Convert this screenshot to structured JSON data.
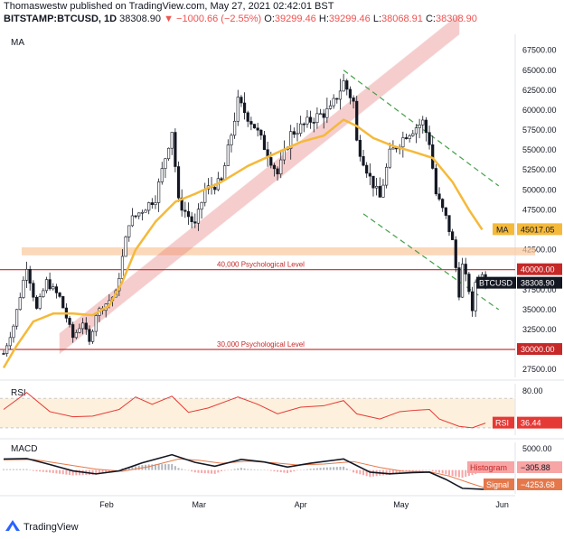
{
  "header": {
    "line1": "Thomaswestw published on TradingView.com, May 27, 2021 02:42:01 BST",
    "symbol": "BITSTAMP:BTCUSD, 1D",
    "last": "38308.90",
    "change": "▼ −1000.66 (−2.55%)",
    "o_label": "O:",
    "o": "39299.46",
    "h_label": "H:",
    "h": "39299.46",
    "l_label": "L:",
    "l": "38068.91",
    "c_label": "C:",
    "c": "38308.90"
  },
  "footer": {
    "brand": "TradingView"
  },
  "colors": {
    "up": "#ffffff",
    "down": "#131722",
    "ma": "#f5b93a",
    "support": "#c62828",
    "channel": "#e57373",
    "band": "#f9c89b",
    "trend": "#43a047",
    "rsi": "#e53935",
    "macd": "#131722",
    "signal": "#e5784b",
    "hist_pos": "#b2b5be",
    "hist_neg": "#f7a5a5"
  },
  "chart_data": [
    {
      "type": "candlestick",
      "title": "MA",
      "ylim": [
        26500,
        69500
      ],
      "yticks": [
        "67500.00",
        "65000.00",
        "62500.00",
        "60000.00",
        "57500.00",
        "55000.00",
        "52500.00",
        "50000.00",
        "47500.00",
        "45000.00",
        "42500.00",
        "40000.00",
        "37500.00",
        "35000.00",
        "32500.00",
        "30000.00",
        "27500.00"
      ],
      "xlabels": [
        {
          "label": "Feb",
          "date": "2021-02-01"
        },
        {
          "label": "Mar",
          "date": "2021-03-01"
        },
        {
          "label": "Apr",
          "date": "2021-04-01"
        },
        {
          "label": "May",
          "date": "2021-05-01"
        },
        {
          "label": "Jun",
          "date": "2021-06-01"
        }
      ],
      "anchors": [
        {
          "date": "2021-01-01",
          "price": 29500
        },
        {
          "date": "2021-01-04",
          "price": 33000
        },
        {
          "date": "2021-01-08",
          "price": 40500
        },
        {
          "date": "2021-01-11",
          "price": 35000
        },
        {
          "date": "2021-01-14",
          "price": 38500
        },
        {
          "date": "2021-01-18",
          "price": 36500
        },
        {
          "date": "2021-01-22",
          "price": 31500
        },
        {
          "date": "2021-01-25",
          "price": 33500
        },
        {
          "date": "2021-01-27",
          "price": 30800
        },
        {
          "date": "2021-01-29",
          "price": 34500
        },
        {
          "date": "2021-02-04",
          "price": 37000
        },
        {
          "date": "2021-02-08",
          "price": 46000
        },
        {
          "date": "2021-02-12",
          "price": 47500
        },
        {
          "date": "2021-02-16",
          "price": 49000
        },
        {
          "date": "2021-02-21",
          "price": 57500
        },
        {
          "date": "2021-02-23",
          "price": 48500
        },
        {
          "date": "2021-02-28",
          "price": 45500
        },
        {
          "date": "2021-03-03",
          "price": 50000
        },
        {
          "date": "2021-03-08",
          "price": 51000
        },
        {
          "date": "2021-03-13",
          "price": 61000
        },
        {
          "date": "2021-03-18",
          "price": 58000
        },
        {
          "date": "2021-03-25",
          "price": 52000
        },
        {
          "date": "2021-03-29",
          "price": 57000
        },
        {
          "date": "2021-04-05",
          "price": 59000
        },
        {
          "date": "2021-04-10",
          "price": 60000
        },
        {
          "date": "2021-04-14",
          "price": 63500
        },
        {
          "date": "2021-04-17",
          "price": 61000
        },
        {
          "date": "2021-04-18",
          "price": 56000
        },
        {
          "date": "2021-04-22",
          "price": 51500
        },
        {
          "date": "2021-04-25",
          "price": 49000
        },
        {
          "date": "2021-04-28",
          "price": 54500
        },
        {
          "date": "2021-05-03",
          "price": 57000
        },
        {
          "date": "2021-05-08",
          "price": 58500
        },
        {
          "date": "2021-05-10",
          "price": 56000
        },
        {
          "date": "2021-05-12",
          "price": 49500
        },
        {
          "date": "2021-05-15",
          "price": 46500
        },
        {
          "date": "2021-05-17",
          "price": 43500
        },
        {
          "date": "2021-05-19",
          "price": 37000
        },
        {
          "date": "2021-05-20",
          "price": 40500
        },
        {
          "date": "2021-05-22",
          "price": 37500
        },
        {
          "date": "2021-05-23",
          "price": 34500
        },
        {
          "date": "2021-05-24",
          "price": 38500
        },
        {
          "date": "2021-05-26",
          "price": 39300
        },
        {
          "date": "2021-05-27",
          "price": 38308.9
        }
      ],
      "series": [
        {
          "name": "MA",
          "last_value": "45017.05",
          "points": [
            [
              "2021-01-01",
              27700
            ],
            [
              "2021-01-05",
              30500
            ],
            [
              "2021-01-10",
              33500
            ],
            [
              "2021-01-16",
              34500
            ],
            [
              "2021-01-22",
              34500
            ],
            [
              "2021-01-28",
              34300
            ],
            [
              "2021-02-02",
              35500
            ],
            [
              "2021-02-06",
              38500
            ],
            [
              "2021-02-10",
              42500
            ],
            [
              "2021-02-16",
              46000
            ],
            [
              "2021-02-22",
              48500
            ],
            [
              "2021-02-28",
              49500
            ],
            [
              "2021-03-08",
              51000
            ],
            [
              "2021-03-16",
              53000
            ],
            [
              "2021-03-24",
              54500
            ],
            [
              "2021-04-01",
              56000
            ],
            [
              "2021-04-08",
              56800
            ],
            [
              "2021-04-14",
              58800
            ],
            [
              "2021-04-18",
              58000
            ],
            [
              "2021-04-23",
              56500
            ],
            [
              "2021-04-29",
              55500
            ],
            [
              "2021-05-05",
              54800
            ],
            [
              "2021-05-11",
              54000
            ],
            [
              "2021-05-17",
              51000
            ],
            [
              "2021-05-22",
              47500
            ],
            [
              "2021-05-26",
              45017.05
            ]
          ]
        }
      ],
      "annotations": [
        {
          "type": "hline",
          "value": 40000,
          "label": "40,000 Psychological Level",
          "tag": "40000.00"
        },
        {
          "type": "hline",
          "value": 30000,
          "label": "30,000 Psychological Level",
          "tag": "30000.00"
        },
        {
          "type": "band",
          "from": 41800,
          "to": 42800
        },
        {
          "type": "channel",
          "from": [
            "2021-01-18",
            29500
          ],
          "to": [
            "2021-05-19",
            69500
          ],
          "upper_offset": 2500
        },
        {
          "type": "trendline",
          "from": [
            "2021-04-14",
            65000
          ],
          "to": [
            "2021-05-31",
            50500
          ]
        },
        {
          "type": "trendline",
          "from": [
            "2021-04-20",
            47000
          ],
          "to": [
            "2021-05-31",
            35000
          ]
        }
      ],
      "price_label": {
        "symbol": "BTCUSD",
        "value": "38308.90"
      }
    },
    {
      "type": "line",
      "title": "RSI",
      "ylim": [
        20,
        90
      ],
      "yticks": [
        "80.00"
      ],
      "band": [
        30,
        70
      ],
      "series": [
        {
          "name": "RSI",
          "last_value": "36.44",
          "points": [
            [
              "2021-01-01",
              55
            ],
            [
              "2021-01-08",
              78
            ],
            [
              "2021-01-15",
              52
            ],
            [
              "2021-01-22",
              45
            ],
            [
              "2021-01-28",
              46
            ],
            [
              "2021-02-05",
              55
            ],
            [
              "2021-02-10",
              72
            ],
            [
              "2021-02-15",
              62
            ],
            [
              "2021-02-21",
              73
            ],
            [
              "2021-02-26",
              51
            ],
            [
              "2021-03-04",
              57
            ],
            [
              "2021-03-13",
              72
            ],
            [
              "2021-03-19",
              62
            ],
            [
              "2021-03-25",
              49
            ],
            [
              "2021-04-01",
              58
            ],
            [
              "2021-04-08",
              60
            ],
            [
              "2021-04-14",
              67
            ],
            [
              "2021-04-18",
              49
            ],
            [
              "2021-04-25",
              42
            ],
            [
              "2021-05-01",
              52
            ],
            [
              "2021-05-06",
              54
            ],
            [
              "2021-05-10",
              55
            ],
            [
              "2021-05-13",
              42
            ],
            [
              "2021-05-19",
              32
            ],
            [
              "2021-05-23",
              30
            ],
            [
              "2021-05-27",
              36.44
            ]
          ]
        }
      ]
    },
    {
      "type": "line",
      "title": "MACD",
      "ylim": [
        -5600,
        6500
      ],
      "yticks": [
        "5000.00"
      ],
      "series": [
        {
          "name": "MACD",
          "points": [
            [
              "2021-01-01",
              2600
            ],
            [
              "2021-01-08",
              2700
            ],
            [
              "2021-01-15",
              1300
            ],
            [
              "2021-01-22",
              -200
            ],
            [
              "2021-01-29",
              -900
            ],
            [
              "2021-02-05",
              -200
            ],
            [
              "2021-02-12",
              1700
            ],
            [
              "2021-02-21",
              3600
            ],
            [
              "2021-02-28",
              1800
            ],
            [
              "2021-03-06",
              900
            ],
            [
              "2021-03-14",
              2500
            ],
            [
              "2021-03-21",
              1900
            ],
            [
              "2021-03-28",
              700
            ],
            [
              "2021-04-04",
              1600
            ],
            [
              "2021-04-14",
              2600
            ],
            [
              "2021-04-22",
              -500
            ],
            [
              "2021-04-28",
              -900
            ],
            [
              "2021-05-05",
              -600
            ],
            [
              "2021-05-10",
              -500
            ],
            [
              "2021-05-15",
              -2200
            ],
            [
              "2021-05-20",
              -4300
            ],
            [
              "2021-05-27",
              -4560
            ]
          ]
        },
        {
          "name": "Signal",
          "last_value": "−4253.68",
          "points": [
            [
              "2021-01-01",
              2400
            ],
            [
              "2021-01-10",
              2500
            ],
            [
              "2021-01-20",
              1300
            ],
            [
              "2021-01-29",
              200
            ],
            [
              "2021-02-06",
              -300
            ],
            [
              "2021-02-14",
              800
            ],
            [
              "2021-02-23",
              2600
            ],
            [
              "2021-03-01",
              2300
            ],
            [
              "2021-03-08",
              1600
            ],
            [
              "2021-03-16",
              2100
            ],
            [
              "2021-03-24",
              1700
            ],
            [
              "2021-03-31",
              1200
            ],
            [
              "2021-04-08",
              1400
            ],
            [
              "2021-04-17",
              2000
            ],
            [
              "2021-04-25",
              600
            ],
            [
              "2021-05-02",
              -300
            ],
            [
              "2021-05-10",
              -400
            ],
            [
              "2021-05-16",
              -1400
            ],
            [
              "2021-05-22",
              -3000
            ],
            [
              "2021-05-27",
              -4253.68
            ]
          ]
        },
        {
          "name": "Histogram",
          "last_value": "−305.88"
        }
      ]
    }
  ]
}
